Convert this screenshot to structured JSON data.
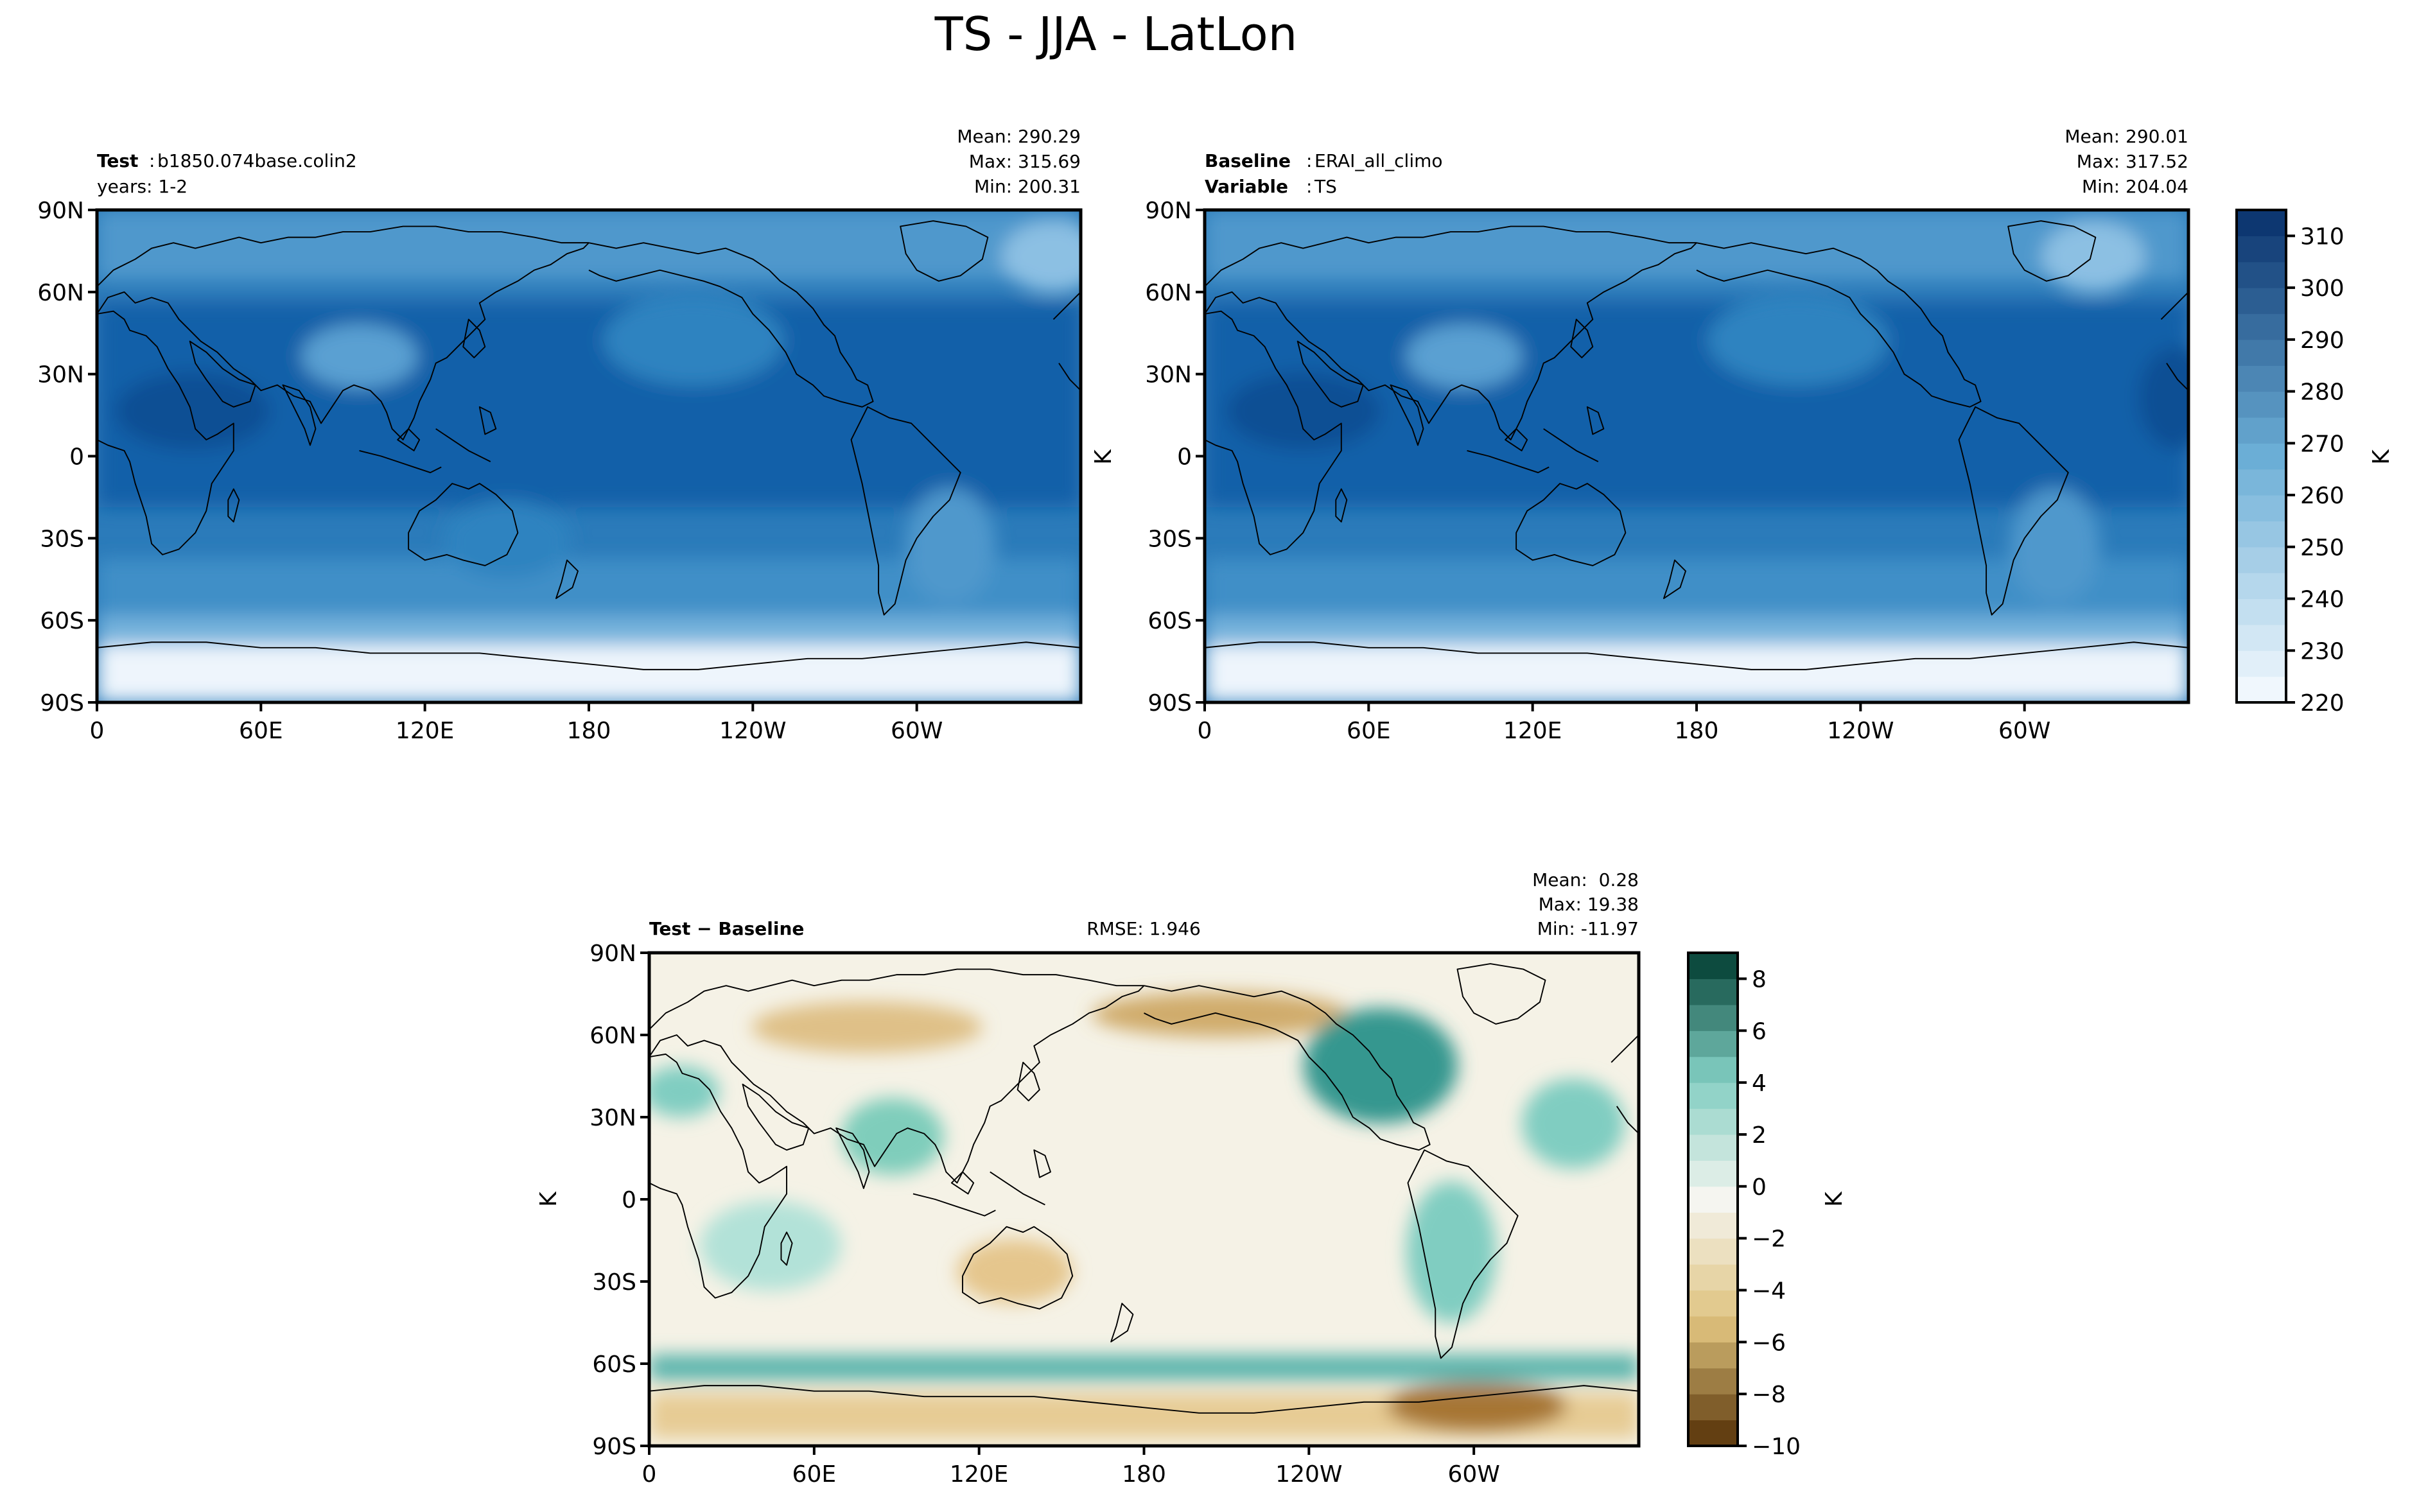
{
  "figure": {
    "title": "TS - JJA - LatLon"
  },
  "colors": {
    "seq_low": "#f7fbff",
    "seq_mid": "#6baed6",
    "seq_high": "#08306b",
    "div_neg_end": "#543005",
    "div_neg_mid": "#dfc27d",
    "div_zero": "#f5f5f0",
    "div_pos_mid": "#80cdc1",
    "div_pos_end": "#003c30",
    "coast": "#000000"
  },
  "chart_data": [
    {
      "type": "heatmap",
      "panel": "test",
      "labels": {
        "key1": "Test",
        "val1": "b1850.074base.colin2",
        "line2": "years: 1-2"
      },
      "stats": {
        "mean": "Mean: 290.29",
        "max": "Max: 315.69",
        "min": "Min: 200.31"
      },
      "x_ticks": [
        "0",
        "60E",
        "120E",
        "180",
        "120W",
        "60W"
      ],
      "y_ticks": [
        "90N",
        "60N",
        "30N",
        "0",
        "30S",
        "60S",
        "90S"
      ],
      "xlim": [
        0,
        360
      ],
      "ylim": [
        -90,
        90
      ],
      "value_range": [
        220,
        315
      ]
    },
    {
      "type": "heatmap",
      "panel": "baseline",
      "labels": {
        "key1": "Baseline",
        "val1": "ERAI_all_climo",
        "key2": "Variable",
        "val2": "TS"
      },
      "stats": {
        "mean": "Mean: 290.01",
        "max": "Max: 317.52",
        "min": "Min: 204.04"
      },
      "x_ticks": [
        "0",
        "60E",
        "120E",
        "180",
        "120W",
        "60W"
      ],
      "y_ticks": [
        "90N",
        "60N",
        "30N",
        "0",
        "30S",
        "60S",
        "90S"
      ],
      "ylabel": "K",
      "xlim": [
        0,
        360
      ],
      "ylim": [
        -90,
        90
      ],
      "colorbar": {
        "label": "K",
        "min": 220,
        "max": 315,
        "ticks": [
          "310",
          "300",
          "290",
          "280",
          "270",
          "260",
          "250",
          "240",
          "230",
          "220"
        ]
      }
    },
    {
      "type": "heatmap",
      "panel": "difference",
      "labels": {
        "title": "Test − Baseline",
        "rmse": "RMSE: 1.946"
      },
      "stats": {
        "mean": "Mean:  0.28",
        "max": "Max: 19.38",
        "min": "Min: -11.97"
      },
      "x_ticks": [
        "0",
        "60E",
        "120E",
        "180",
        "120W",
        "60W"
      ],
      "y_ticks": [
        "90N",
        "60N",
        "30N",
        "0",
        "30S",
        "60S",
        "90S"
      ],
      "ylabel": "K",
      "xlim": [
        0,
        360
      ],
      "ylim": [
        -90,
        90
      ],
      "colorbar": {
        "label": "K",
        "min": -10,
        "max": 9,
        "ticks": [
          "8",
          "6",
          "4",
          "2",
          "0",
          "−2",
          "−4",
          "−6",
          "−8",
          "−10"
        ]
      }
    }
  ]
}
